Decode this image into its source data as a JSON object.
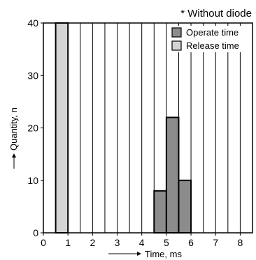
{
  "chart_data": {
    "type": "bar",
    "annotation": "* Without diode",
    "xlabel": "Time, ms",
    "ylabel": "Quantity, n",
    "xlim": [
      0,
      8.5
    ],
    "ylim": [
      0,
      40
    ],
    "xticks": [
      "0",
      "1",
      "2",
      "3",
      "4",
      "5",
      "6",
      "7",
      "8"
    ],
    "yticks": [
      "0",
      "10",
      "20",
      "30",
      "40"
    ],
    "bin_width": 0.5,
    "grid": "vertical",
    "legend_position": "top-right",
    "series": [
      {
        "name": "Operate time",
        "color": "#8c8c8c",
        "bins": [
          {
            "start": 4.5,
            "end": 5.0,
            "value": 8
          },
          {
            "start": 5.0,
            "end": 5.5,
            "value": 22
          },
          {
            "start": 5.5,
            "end": 6.0,
            "value": 10
          }
        ]
      },
      {
        "name": "Release time",
        "color": "#d4d4d4",
        "bins": [
          {
            "start": 0.5,
            "end": 1.0,
            "value": 40
          }
        ]
      }
    ]
  }
}
